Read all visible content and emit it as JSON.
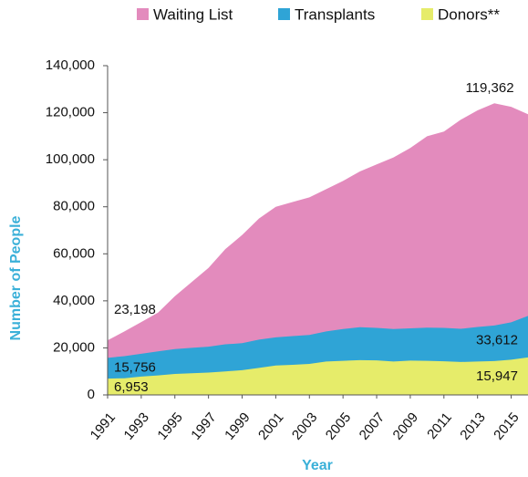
{
  "chart_data": {
    "type": "area",
    "x": [
      1991,
      1992,
      1993,
      1994,
      1995,
      1996,
      1997,
      1998,
      1999,
      2000,
      2001,
      2002,
      2003,
      2004,
      2005,
      2006,
      2007,
      2008,
      2009,
      2010,
      2011,
      2012,
      2013,
      2014,
      2015,
      2016
    ],
    "series": [
      {
        "name": "Waiting List",
        "color": "#e38bbd",
        "values": [
          23198,
          27000,
          31000,
          35000,
          42000,
          48000,
          54000,
          62000,
          68000,
          75000,
          80000,
          82000,
          84000,
          87500,
          91000,
          95000,
          98000,
          101000,
          105000,
          110000,
          112000,
          117000,
          121000,
          124000,
          122500,
          119362
        ],
        "value_labels": [
          "23,198",
          null,
          null,
          null,
          null,
          null,
          null,
          null,
          null,
          null,
          null,
          null,
          null,
          null,
          null,
          null,
          null,
          null,
          null,
          null,
          null,
          null,
          null,
          null,
          null,
          "119,362"
        ]
      },
      {
        "name": "Transplants",
        "color": "#2fa4d6",
        "values": [
          15756,
          16500,
          17500,
          18500,
          19500,
          20000,
          20500,
          21500,
          22000,
          23500,
          24500,
          25000,
          25500,
          27000,
          28000,
          28800,
          28500,
          28000,
          28300,
          28600,
          28500,
          28100,
          28900,
          29500,
          30900,
          33612
        ],
        "value_labels": [
          "15,756",
          null,
          null,
          null,
          null,
          null,
          null,
          null,
          null,
          null,
          null,
          null,
          null,
          null,
          null,
          null,
          null,
          null,
          null,
          null,
          null,
          null,
          null,
          null,
          null,
          "33,612"
        ]
      },
      {
        "name": "Donors**",
        "color": "#e6ec6a",
        "values": [
          6953,
          7100,
          7800,
          8300,
          8900,
          9200,
          9500,
          10000,
          10500,
          11500,
          12500,
          12800,
          13200,
          14200,
          14500,
          14800,
          14700,
          14200,
          14600,
          14500,
          14300,
          14000,
          14200,
          14400,
          15000,
          15947
        ],
        "value_labels": [
          "6,953",
          null,
          null,
          null,
          null,
          null,
          null,
          null,
          null,
          null,
          null,
          null,
          null,
          null,
          null,
          null,
          null,
          null,
          null,
          null,
          null,
          null,
          null,
          null,
          null,
          "15,947"
        ]
      }
    ],
    "xlabel": "Year",
    "ylabel": "Number of People",
    "xlim": [
      1991,
      2016
    ],
    "xticks": [
      1991,
      1993,
      1995,
      1997,
      1999,
      2001,
      2003,
      2005,
      2007,
      2009,
      2011,
      2013,
      2015
    ],
    "ylim": [
      0,
      140000
    ],
    "yticks": [
      0,
      {
        "value": 20000,
        "label": "20,000"
      },
      {
        "value": 40000,
        "label": "40,000"
      },
      {
        "value": 60000,
        "label": "60,000"
      },
      {
        "value": 80000,
        "label": "80,000"
      },
      {
        "value": 100000,
        "label": "100,000"
      },
      {
        "value": 120000,
        "label": "120,000"
      },
      {
        "value": 140000,
        "label": "140,000"
      }
    ],
    "legend": "top"
  }
}
